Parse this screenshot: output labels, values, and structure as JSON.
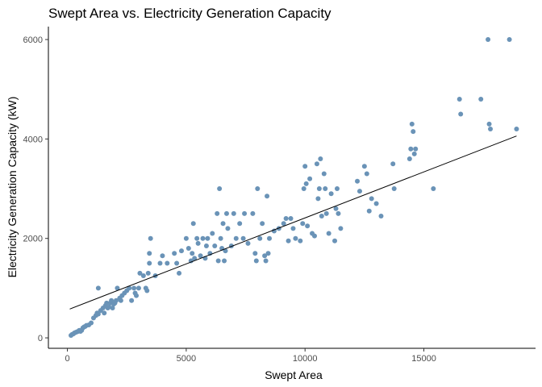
{
  "chart_data": {
    "type": "scatter",
    "title": "Swept Area vs. Electricity Generation Capacity",
    "xlabel": "Swept Area",
    "ylabel": "Electricity Generation Capacity (kW)",
    "xlim": [
      -800,
      19700
    ],
    "ylim": [
      -210,
      6260
    ],
    "x_ticks": [
      0,
      5000,
      10000,
      15000
    ],
    "y_ticks": [
      0,
      2000,
      4000,
      6000
    ],
    "grid": false,
    "legend": "none",
    "point_color": "#6A93B7",
    "trend_color": "#000000",
    "trend_line": [
      [
        100,
        580
      ],
      [
        18900,
        4060
      ]
    ],
    "points": [
      [
        150,
        50
      ],
      [
        200,
        70
      ],
      [
        250,
        80
      ],
      [
        300,
        100
      ],
      [
        350,
        110
      ],
      [
        400,
        120
      ],
      [
        450,
        130
      ],
      [
        500,
        150
      ],
      [
        550,
        130
      ],
      [
        600,
        150
      ],
      [
        650,
        200
      ],
      [
        700,
        220
      ],
      [
        750,
        230
      ],
      [
        800,
        250
      ],
      [
        900,
        260
      ],
      [
        1000,
        300
      ],
      [
        1100,
        400
      ],
      [
        1200,
        450
      ],
      [
        1250,
        500
      ],
      [
        1300,
        480
      ],
      [
        1300,
        1000
      ],
      [
        1400,
        550
      ],
      [
        1500,
        600
      ],
      [
        1550,
        500
      ],
      [
        1600,
        650
      ],
      [
        1650,
        700
      ],
      [
        1700,
        600
      ],
      [
        1750,
        620
      ],
      [
        1800,
        700
      ],
      [
        1850,
        750
      ],
      [
        1900,
        600
      ],
      [
        1950,
        680
      ],
      [
        2000,
        700
      ],
      [
        2050,
        750
      ],
      [
        2100,
        1000
      ],
      [
        2200,
        800
      ],
      [
        2250,
        750
      ],
      [
        2300,
        850
      ],
      [
        2400,
        900
      ],
      [
        2500,
        950
      ],
      [
        2600,
        1000
      ],
      [
        2700,
        750
      ],
      [
        2800,
        1000
      ],
      [
        2850,
        900
      ],
      [
        2900,
        850
      ],
      [
        3000,
        1000
      ],
      [
        3050,
        1300
      ],
      [
        3200,
        1250
      ],
      [
        3300,
        1000
      ],
      [
        3350,
        950
      ],
      [
        3400,
        1300
      ],
      [
        3450,
        1500
      ],
      [
        3450,
        1700
      ],
      [
        3500,
        2000
      ],
      [
        3700,
        1250
      ],
      [
        3900,
        1500
      ],
      [
        4000,
        1650
      ],
      [
        4200,
        1500
      ],
      [
        4500,
        1700
      ],
      [
        4600,
        1500
      ],
      [
        4700,
        1300
      ],
      [
        4800,
        1750
      ],
      [
        5000,
        2000
      ],
      [
        5100,
        1800
      ],
      [
        5200,
        1550
      ],
      [
        5250,
        1700
      ],
      [
        5300,
        2300
      ],
      [
        5350,
        1600
      ],
      [
        5450,
        2000
      ],
      [
        5500,
        1900
      ],
      [
        5600,
        1650
      ],
      [
        5700,
        2000
      ],
      [
        5800,
        1600
      ],
      [
        5850,
        1850
      ],
      [
        5900,
        2000
      ],
      [
        6000,
        1700
      ],
      [
        6100,
        2100
      ],
      [
        6200,
        1850
      ],
      [
        6300,
        2500
      ],
      [
        6350,
        1550
      ],
      [
        6400,
        3000
      ],
      [
        6450,
        2000
      ],
      [
        6500,
        1800
      ],
      [
        6550,
        2300
      ],
      [
        6600,
        1550
      ],
      [
        6650,
        1750
      ],
      [
        6700,
        2500
      ],
      [
        6750,
        2200
      ],
      [
        6900,
        1850
      ],
      [
        7000,
        2500
      ],
      [
        7100,
        2000
      ],
      [
        7250,
        2300
      ],
      [
        7400,
        2000
      ],
      [
        7450,
        2500
      ],
      [
        7600,
        1900
      ],
      [
        7800,
        2500
      ],
      [
        7900,
        1700
      ],
      [
        7950,
        1550
      ],
      [
        8000,
        3000
      ],
      [
        8100,
        2000
      ],
      [
        8200,
        2300
      ],
      [
        8300,
        1650
      ],
      [
        8350,
        1550
      ],
      [
        8400,
        2850
      ],
      [
        8450,
        1700
      ],
      [
        8500,
        2000
      ],
      [
        8700,
        2150
      ],
      [
        8900,
        2200
      ],
      [
        9100,
        2300
      ],
      [
        9200,
        2400
      ],
      [
        9300,
        1950
      ],
      [
        9400,
        2400
      ],
      [
        9500,
        2200
      ],
      [
        9600,
        2000
      ],
      [
        9800,
        1950
      ],
      [
        9900,
        2300
      ],
      [
        9950,
        3000
      ],
      [
        10000,
        3450
      ],
      [
        10050,
        3100
      ],
      [
        10100,
        2250
      ],
      [
        10200,
        3200
      ],
      [
        10300,
        2100
      ],
      [
        10400,
        2050
      ],
      [
        10500,
        3500
      ],
      [
        10550,
        2800
      ],
      [
        10600,
        3000
      ],
      [
        10650,
        3600
      ],
      [
        10700,
        2450
      ],
      [
        10800,
        3300
      ],
      [
        10850,
        3000
      ],
      [
        10900,
        2500
      ],
      [
        11000,
        2100
      ],
      [
        11100,
        2900
      ],
      [
        11250,
        1950
      ],
      [
        11300,
        2600
      ],
      [
        11350,
        3000
      ],
      [
        11400,
        2500
      ],
      [
        11500,
        2200
      ],
      [
        12200,
        3150
      ],
      [
        12300,
        2950
      ],
      [
        12500,
        3450
      ],
      [
        12600,
        3300
      ],
      [
        12700,
        2550
      ],
      [
        12800,
        2800
      ],
      [
        13000,
        2700
      ],
      [
        13200,
        2450
      ],
      [
        13700,
        3500
      ],
      [
        13750,
        3000
      ],
      [
        14400,
        3600
      ],
      [
        14450,
        3800
      ],
      [
        14500,
        4300
      ],
      [
        14550,
        4150
      ],
      [
        14600,
        3700
      ],
      [
        14650,
        3800
      ],
      [
        15400,
        3000
      ],
      [
        16500,
        4800
      ],
      [
        16550,
        4500
      ],
      [
        17400,
        4800
      ],
      [
        17700,
        6000
      ],
      [
        17750,
        4300
      ],
      [
        17800,
        4200
      ],
      [
        18600,
        6000
      ],
      [
        18900,
        4200
      ]
    ]
  }
}
